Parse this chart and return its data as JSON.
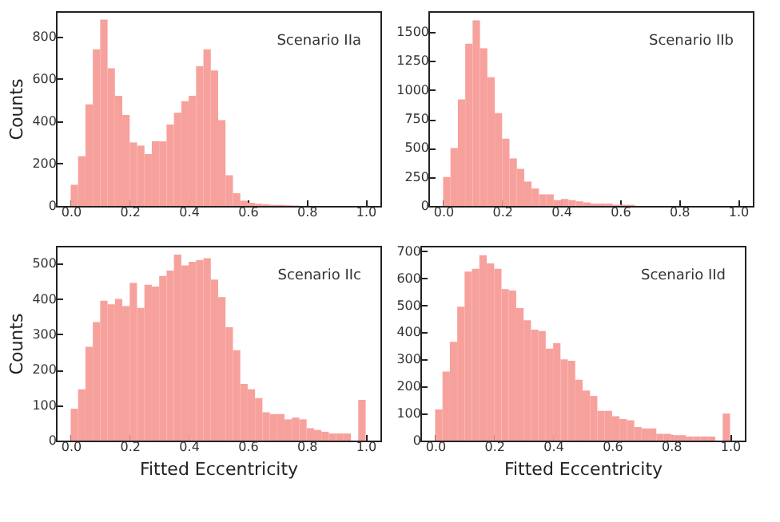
{
  "chart_data": [
    {
      "type": "histogram",
      "ylabel": "Counts",
      "annotations": [
        "Scenario IIa"
      ],
      "color": "#f7a19d",
      "bins": [
        0,
        0.025,
        0.05,
        0.075,
        0.1,
        0.125,
        0.15,
        0.175,
        0.2,
        0.225,
        0.25,
        0.275,
        0.3,
        0.325,
        0.35,
        0.375,
        0.4,
        0.425,
        0.45,
        0.475,
        0.5,
        0.525,
        0.55,
        0.575,
        0.6,
        0.625,
        0.65,
        0.675,
        0.7,
        0.725,
        0.75,
        0.775,
        0.8,
        0.825,
        0.85,
        0.875,
        0.9,
        0.925,
        0.95,
        0.975,
        1.0
      ],
      "values": [
        100,
        235,
        480,
        740,
        880,
        650,
        520,
        430,
        300,
        285,
        245,
        305,
        305,
        385,
        440,
        495,
        520,
        660,
        740,
        640,
        405,
        145,
        60,
        25,
        15,
        10,
        8,
        5,
        5,
        3,
        2,
        0,
        0,
        0,
        0,
        0,
        0,
        0,
        0,
        0
      ],
      "xlim": [
        -0.05,
        1.05
      ],
      "ylim": [
        0,
        920
      ],
      "xticks": [
        {
          "value": 0,
          "label": "0.0"
        },
        {
          "value": 0.2,
          "label": "0.2"
        },
        {
          "value": 0.4,
          "label": "0.4"
        },
        {
          "value": 0.6,
          "label": "0.6"
        },
        {
          "value": 0.8,
          "label": "0.8"
        },
        {
          "value": 1,
          "label": "1.0"
        }
      ],
      "yticks": [
        0,
        200,
        400,
        600,
        800
      ],
      "grid": false
    },
    {
      "type": "histogram",
      "annotations": [
        "Scenario IIb"
      ],
      "color": "#f7a19d",
      "bins": [
        0,
        0.025,
        0.05,
        0.075,
        0.1,
        0.125,
        0.15,
        0.175,
        0.2,
        0.225,
        0.25,
        0.275,
        0.3,
        0.325,
        0.35,
        0.375,
        0.4,
        0.425,
        0.45,
        0.475,
        0.5,
        0.525,
        0.55,
        0.575,
        0.6,
        0.625,
        0.65,
        0.675,
        0.7,
        0.725,
        0.75,
        0.775,
        0.8,
        0.825,
        0.85,
        0.875,
        0.9,
        0.925,
        0.95,
        0.975,
        1.0
      ],
      "values": [
        250,
        500,
        920,
        1400,
        1600,
        1360,
        1110,
        800,
        580,
        410,
        320,
        210,
        150,
        100,
        100,
        50,
        60,
        50,
        40,
        30,
        20,
        20,
        20,
        10,
        10,
        10,
        0,
        0,
        0,
        0,
        0,
        0,
        0,
        0,
        0,
        0,
        0,
        0,
        0,
        0
      ],
      "xlim": [
        -0.05,
        1.05
      ],
      "ylim": [
        0,
        1680
      ],
      "xticks": [
        {
          "value": 0,
          "label": "0.0"
        },
        {
          "value": 0.2,
          "label": "0.2"
        },
        {
          "value": 0.4,
          "label": "0.4"
        },
        {
          "value": 0.6,
          "label": "0.6"
        },
        {
          "value": 0.8,
          "label": "0.8"
        },
        {
          "value": 1,
          "label": "1.0"
        }
      ],
      "yticks": [
        0,
        250,
        500,
        750,
        1000,
        1250,
        1500
      ],
      "grid": false
    },
    {
      "type": "histogram",
      "xlabel": "Fitted Eccentricity",
      "ylabel": "Counts",
      "annotations": [
        "Scenario IIc"
      ],
      "color": "#f7a19d",
      "bins": [
        0,
        0.025,
        0.05,
        0.075,
        0.1,
        0.125,
        0.15,
        0.175,
        0.2,
        0.225,
        0.25,
        0.275,
        0.3,
        0.325,
        0.35,
        0.375,
        0.4,
        0.425,
        0.45,
        0.475,
        0.5,
        0.525,
        0.55,
        0.575,
        0.6,
        0.625,
        0.65,
        0.675,
        0.7,
        0.725,
        0.75,
        0.775,
        0.8,
        0.825,
        0.85,
        0.875,
        0.9,
        0.925,
        0.95,
        0.975,
        1.0
      ],
      "values": [
        90,
        145,
        265,
        335,
        395,
        385,
        400,
        380,
        445,
        375,
        440,
        435,
        465,
        480,
        525,
        495,
        505,
        510,
        515,
        455,
        405,
        320,
        255,
        160,
        145,
        120,
        80,
        75,
        75,
        60,
        65,
        60,
        35,
        30,
        25,
        20,
        20,
        20,
        0,
        115
      ],
      "xlim": [
        -0.05,
        1.05
      ],
      "ylim": [
        0,
        550
      ],
      "xticks": [
        {
          "value": 0,
          "label": "0.0"
        },
        {
          "value": 0.2,
          "label": "0.2"
        },
        {
          "value": 0.4,
          "label": "0.4"
        },
        {
          "value": 0.6,
          "label": "0.6"
        },
        {
          "value": 0.8,
          "label": "0.8"
        },
        {
          "value": 1,
          "label": "1.0"
        }
      ],
      "yticks": [
        0,
        100,
        200,
        300,
        400,
        500
      ],
      "grid": false
    },
    {
      "type": "histogram",
      "xlabel": "Fitted Eccentricity",
      "annotations": [
        "Scenario IId"
      ],
      "color": "#f7a19d",
      "bins": [
        0,
        0.025,
        0.05,
        0.075,
        0.1,
        0.125,
        0.15,
        0.175,
        0.2,
        0.225,
        0.25,
        0.275,
        0.3,
        0.325,
        0.35,
        0.375,
        0.4,
        0.425,
        0.45,
        0.475,
        0.5,
        0.525,
        0.55,
        0.575,
        0.6,
        0.625,
        0.65,
        0.675,
        0.7,
        0.725,
        0.75,
        0.775,
        0.8,
        0.825,
        0.85,
        0.875,
        0.9,
        0.925,
        0.95,
        0.975,
        1.0
      ],
      "values": [
        115,
        255,
        365,
        495,
        625,
        635,
        685,
        655,
        635,
        560,
        555,
        490,
        445,
        410,
        405,
        340,
        360,
        300,
        295,
        225,
        185,
        165,
        110,
        110,
        90,
        80,
        75,
        50,
        45,
        45,
        25,
        25,
        20,
        20,
        15,
        15,
        15,
        15,
        0,
        100
      ],
      "xlim": [
        -0.05,
        1.05
      ],
      "ylim": [
        0,
        720
      ],
      "xticks": [
        {
          "value": 0,
          "label": "0.0"
        },
        {
          "value": 0.2,
          "label": "0.2"
        },
        {
          "value": 0.4,
          "label": "0.4"
        },
        {
          "value": 0.6,
          "label": "0.6"
        },
        {
          "value": 0.8,
          "label": "0.8"
        },
        {
          "value": 1,
          "label": "1.0"
        }
      ],
      "yticks": [
        0,
        100,
        200,
        300,
        400,
        500,
        600,
        700
      ],
      "grid": false
    }
  ]
}
